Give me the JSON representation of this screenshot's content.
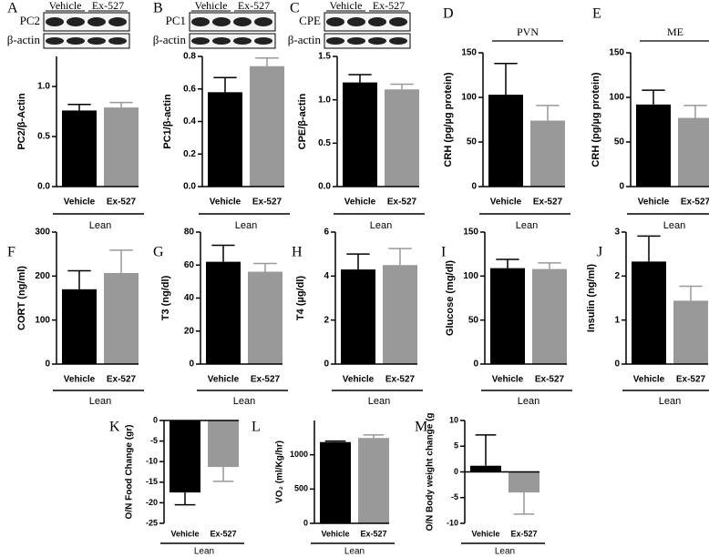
{
  "chart_data": [
    {
      "type": "bar",
      "label": "A",
      "ylabel": "PC2/β-Actin",
      "categories": [
        "Vehicle",
        "Ex-527"
      ],
      "group": "Lean",
      "values": [
        0.76,
        0.79
      ],
      "errors": [
        0.06,
        0.05
      ],
      "colors": [
        "#000000",
        "#999999"
      ],
      "ylim": [
        0,
        1.3
      ],
      "yticks": [
        {
          "value": 0,
          "label": "0.0"
        },
        0.5,
        {
          "value": 1,
          "label": "1.0"
        }
      ],
      "blot": {
        "protein": "PC2",
        "control": "β-actin",
        "lanes": [
          "Vehicle",
          "Ex-527"
        ]
      }
    },
    {
      "type": "bar",
      "label": "B",
      "ylabel": "PC1/β-actin",
      "categories": [
        "Vehicle",
        "Ex-527"
      ],
      "group": "Lean",
      "values": [
        0.58,
        0.74
      ],
      "errors": [
        0.09,
        0.05
      ],
      "colors": [
        "#000000",
        "#999999"
      ],
      "ylim": [
        0,
        0.8
      ],
      "yticks": [
        {
          "value": 0,
          "label": "0.0"
        },
        0.2,
        0.4,
        0.6,
        0.8
      ],
      "blot": {
        "protein": "PC1",
        "control": "β-actin",
        "lanes": [
          "Vehicle",
          "Ex-527"
        ]
      }
    },
    {
      "type": "bar",
      "label": "C",
      "ylabel": "CPE/β-actin",
      "categories": [
        "Vehicle",
        "Ex-527"
      ],
      "group": "Lean",
      "values": [
        1.2,
        1.12
      ],
      "errors": [
        0.09,
        0.06
      ],
      "colors": [
        "#000000",
        "#999999"
      ],
      "ylim": [
        0,
        1.5
      ],
      "yticks": [
        {
          "value": 0,
          "label": "0.0"
        },
        0.5,
        {
          "value": 1,
          "label": "1.0"
        },
        1.5
      ],
      "blot": {
        "protein": "CPE",
        "control": "β-actin",
        "lanes": [
          "Vehicle",
          "Ex-527"
        ]
      }
    },
    {
      "type": "bar",
      "label": "D",
      "ylabel": "CRH (pg/µg protein)",
      "categories": [
        "Vehicle",
        "Ex-527"
      ],
      "group": "Lean",
      "region": "PVN",
      "values": [
        103,
        74
      ],
      "errors": [
        35,
        17
      ],
      "colors": [
        "#000000",
        "#999999"
      ],
      "ylim": [
        0,
        150
      ],
      "yticks": [
        0,
        50,
        100,
        150
      ]
    },
    {
      "type": "bar",
      "label": "E",
      "ylabel": "CRH (pg/µg protein)",
      "categories": [
        "Vehicle",
        "Ex-527"
      ],
      "group": "Lean",
      "region": "ME",
      "values": [
        92,
        77
      ],
      "errors": [
        16,
        14
      ],
      "colors": [
        "#000000",
        "#999999"
      ],
      "ylim": [
        0,
        150
      ],
      "yticks": [
        0,
        50,
        100,
        150
      ]
    },
    {
      "type": "bar",
      "label": "F",
      "ylabel": "CORT (ng/ml)",
      "categories": [
        "Vehicle",
        "Ex-527"
      ],
      "group": "Lean",
      "values": [
        170,
        207
      ],
      "errors": [
        42,
        52
      ],
      "colors": [
        "#000000",
        "#999999"
      ],
      "ylim": [
        0,
        300
      ],
      "yticks": [
        0,
        100,
        200,
        300
      ]
    },
    {
      "type": "bar",
      "label": "G",
      "ylabel": "T3 (ng/dl)",
      "categories": [
        "Vehicle",
        "Ex-527"
      ],
      "group": "Lean",
      "values": [
        62,
        56
      ],
      "errors": [
        10,
        5
      ],
      "colors": [
        "#000000",
        "#999999"
      ],
      "ylim": [
        0,
        80
      ],
      "yticks": [
        0,
        20,
        40,
        60,
        80
      ]
    },
    {
      "type": "bar",
      "label": "H",
      "ylabel": "T4 (µg/dl)",
      "categories": [
        "Vehicle",
        "Ex-527"
      ],
      "group": "Lean",
      "values": [
        4.3,
        4.5
      ],
      "errors": [
        0.7,
        0.75
      ],
      "colors": [
        "#000000",
        "#999999"
      ],
      "ylim": [
        0,
        6
      ],
      "yticks": [
        0,
        2,
        4,
        6
      ]
    },
    {
      "type": "bar",
      "label": "I",
      "ylabel": "Glucose (mg/dl)",
      "categories": [
        "Vehicle",
        "Ex-527"
      ],
      "group": "Lean",
      "values": [
        109,
        108
      ],
      "errors": [
        10,
        7
      ],
      "colors": [
        "#000000",
        "#999999"
      ],
      "ylim": [
        0,
        150
      ],
      "yticks": [
        0,
        50,
        100,
        150
      ]
    },
    {
      "type": "bar",
      "label": "J",
      "ylabel": "Insulin (ng/ml)",
      "categories": [
        "Vehicle",
        "Ex-527"
      ],
      "group": "Lean",
      "values": [
        2.33,
        1.44
      ],
      "errors": [
        0.58,
        0.33
      ],
      "colors": [
        "#000000",
        "#999999"
      ],
      "ylim": [
        0,
        3
      ],
      "yticks": [
        0,
        1,
        2,
        3
      ]
    },
    {
      "type": "bar",
      "label": "K",
      "ylabel": "O/N Food Change (gr)",
      "categories": [
        "Vehicle",
        "Ex-527"
      ],
      "group": "Lean",
      "values": [
        -17.5,
        -11.3
      ],
      "errors": [
        3,
        3.5
      ],
      "colors": [
        "#000000",
        "#999999"
      ],
      "ylim": [
        -25,
        0
      ],
      "yticks": [
        0,
        -5,
        -10,
        -15,
        -20,
        -25
      ]
    },
    {
      "type": "bar",
      "label": "L",
      "ylabel": "VO₂ (ml/Kg/hr)",
      "categories": [
        "Vehicle",
        "Ex-527"
      ],
      "group": "Lean",
      "values": [
        1185,
        1245
      ],
      "errors": [
        15,
        45
      ],
      "colors": [
        "#000000",
        "#999999"
      ],
      "ylim": [
        0,
        1500
      ],
      "yticks": [
        0,
        500,
        1000
      ]
    },
    {
      "type": "bar",
      "label": "M",
      "ylabel": "O/N Body weight change (g",
      "categories": [
        "Vehicle",
        "Ex-527"
      ],
      "group": "Lean",
      "values": [
        1.2,
        -4
      ],
      "errors": [
        6,
        4.2
      ],
      "colors": [
        "#000000",
        "#999999"
      ],
      "ylim": [
        -10,
        10
      ],
      "yticks": [
        -10,
        -5,
        0,
        5,
        10
      ]
    }
  ]
}
